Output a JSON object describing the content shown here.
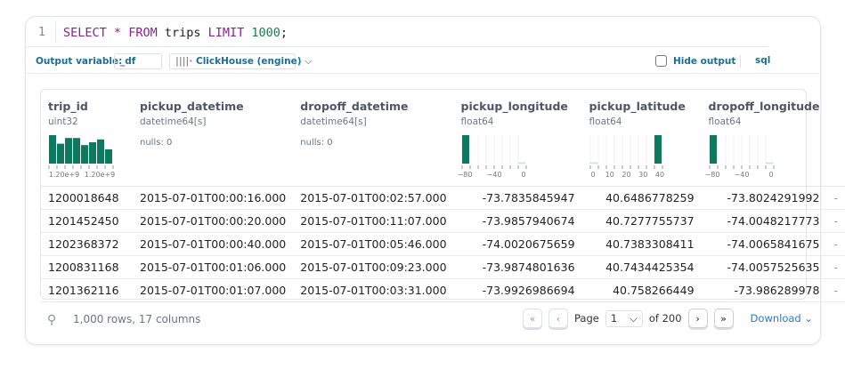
{
  "editor": {
    "line_number": "1",
    "tokens": [
      {
        "t": "SELECT",
        "c": "kw"
      },
      {
        "t": " ",
        "c": ""
      },
      {
        "t": "*",
        "c": "kw"
      },
      {
        "t": " ",
        "c": ""
      },
      {
        "t": "FROM",
        "c": "kw"
      },
      {
        "t": " trips ",
        "c": ""
      },
      {
        "t": "LIMIT",
        "c": "kw"
      },
      {
        "t": " ",
        "c": ""
      },
      {
        "t": "1000",
        "c": "num"
      },
      {
        "t": ";",
        "c": ""
      }
    ]
  },
  "toolbar": {
    "output_label": "Output variable:",
    "output_value": "_df",
    "engine": "ClickHouse (engine)",
    "engine_icon": "columns-icon",
    "hide_output": "Hide output",
    "hide_checked": false,
    "language": "sql"
  },
  "accent": "#0b7a5e",
  "columns": [
    {
      "name": "trip_id",
      "type": "uint32",
      "hist": {
        "values": [
          10,
          7,
          9,
          9,
          6.5,
          7.5,
          8.5,
          5
        ],
        "ticks": [
          "1.20e+9",
          "1.20e+9"
        ]
      }
    },
    {
      "name": "pickup_datetime",
      "type": "datetime64[s]",
      "nulls": "nulls: 0"
    },
    {
      "name": "dropoff_datetime",
      "type": "datetime64[s]",
      "nulls": "nulls: 0"
    },
    {
      "name": "pickup_longitude",
      "type": "float64",
      "hist": {
        "values": [
          10,
          0,
          0,
          0,
          0,
          0,
          0,
          0.3
        ],
        "ticks": [
          "−80",
          "−40",
          "0"
        ]
      }
    },
    {
      "name": "pickup_latitude",
      "type": "float64",
      "hist": {
        "values": [
          0.3,
          0,
          0,
          0,
          0,
          0,
          0,
          0,
          10
        ],
        "ticks": [
          "0",
          "10",
          "20",
          "30",
          "40"
        ]
      }
    },
    {
      "name": "dropoff_longitude",
      "type": "float64",
      "hist": {
        "values": [
          10,
          0,
          0,
          0,
          0,
          0,
          0,
          0.3
        ],
        "ticks": [
          "−80",
          "−40",
          "0"
        ]
      }
    }
  ],
  "rows": [
    [
      "1200018648",
      "2015-07-01T00:00:16.000",
      "2015-07-01T00:02:57.000",
      "-73.7835845947",
      "40.6486778259",
      "-73.8024291992"
    ],
    [
      "1201452450",
      "2015-07-01T00:00:20.000",
      "2015-07-01T00:11:07.000",
      "-73.9857940674",
      "40.7277755737",
      "-74.0048217773"
    ],
    [
      "1202368372",
      "2015-07-01T00:00:40.000",
      "2015-07-01T00:05:46.000",
      "-74.0020675659",
      "40.7383308411",
      "-74.0065841675"
    ],
    [
      "1200831168",
      "2015-07-01T00:01:06.000",
      "2015-07-01T00:09:23.000",
      "-73.9874801636",
      "40.7434425354",
      "-74.0057525635"
    ],
    [
      "1201362116",
      "2015-07-01T00:01:07.000",
      "2015-07-01T00:03:31.000",
      "-73.9926986694",
      "40.758266449",
      "-73.986289978"
    ]
  ],
  "footer": {
    "summary": "1,000 rows, 17 columns",
    "page_label": "Page",
    "page": "1",
    "of": "of 200",
    "download": "Download"
  }
}
